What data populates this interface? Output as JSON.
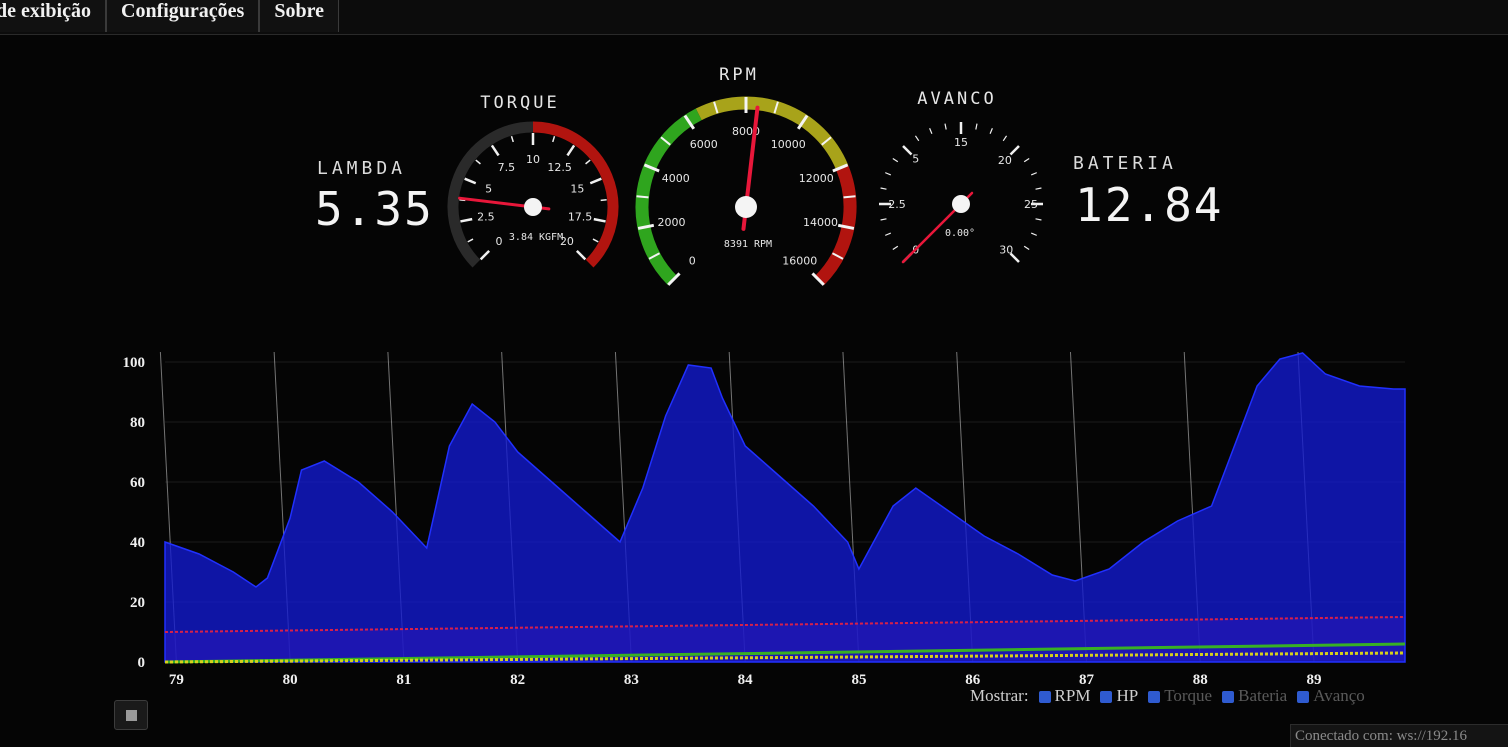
{
  "tabs": [
    {
      "label": "de exibição"
    },
    {
      "label": "Configurações"
    },
    {
      "label": "Sobre"
    }
  ],
  "lambda": {
    "label": "LAMBDA",
    "value": "5.35"
  },
  "bateria": {
    "label": "BATERIA",
    "value": "12.84"
  },
  "torque_gauge": {
    "title": "TORQUE",
    "ticks": [
      "0",
      "2.5",
      "5",
      "7.5",
      "10",
      "12.5",
      "15",
      "17.5",
      "20"
    ],
    "readout": "3.84 KGFM",
    "value": 3.84,
    "min": 0,
    "max": 20
  },
  "rpm_gauge": {
    "title": "RPM",
    "ticks": [
      "0",
      "2000",
      "4000",
      "6000",
      "8000",
      "10000",
      "12000",
      "14000",
      "16000"
    ],
    "readout": "8391 RPM",
    "value": 8391,
    "min": 0,
    "max": 16000
  },
  "avanco_gauge": {
    "title": "AVANCO",
    "ticks": [
      "0",
      "2.5",
      "5",
      "10",
      "15",
      "20",
      "25",
      "30"
    ],
    "readout": "0.00°",
    "value": 0,
    "min": 0,
    "max": 30
  },
  "colors": {
    "gauge_green": "#2fa51e",
    "gauge_yellow": "#a8a31a",
    "gauge_red": "#b1140f",
    "needle": "#e8173a",
    "series_rpm": "#1a1fd6",
    "series_hp": "#d8204a",
    "series_torque": "#d6d11a",
    "series_bateria": "#38b025"
  },
  "chart_data": {
    "type": "area",
    "x_ticks": [
      "79",
      "80",
      "81",
      "82",
      "83",
      "84",
      "85",
      "86",
      "87",
      "88",
      "89"
    ],
    "y_ticks": [
      "0",
      "20",
      "40",
      "60",
      "80",
      "100"
    ],
    "ylim": [
      0,
      110
    ],
    "xlim": [
      78.9,
      89.8
    ],
    "grid": true,
    "series": [
      {
        "name": "RPM",
        "x": [
          78.9,
          79.2,
          79.5,
          79.7,
          79.8,
          80.0,
          80.1,
          80.3,
          80.6,
          80.9,
          81.1,
          81.2,
          81.4,
          81.6,
          81.8,
          82.0,
          82.3,
          82.6,
          82.9,
          83.1,
          83.3,
          83.5,
          83.7,
          83.8,
          84.0,
          84.3,
          84.6,
          84.9,
          85.0,
          85.3,
          85.5,
          85.8,
          86.1,
          86.4,
          86.7,
          86.9,
          87.2,
          87.5,
          87.8,
          88.1,
          88.3,
          88.5,
          88.7,
          88.9,
          89.1,
          89.4,
          89.7,
          89.8
        ],
        "values": [
          40,
          36,
          30,
          25,
          28,
          48,
          64,
          67,
          60,
          50,
          42,
          38,
          72,
          86,
          80,
          70,
          60,
          50,
          40,
          58,
          82,
          99,
          98,
          88,
          72,
          62,
          52,
          40,
          31,
          52,
          58,
          50,
          42,
          36,
          29,
          27,
          31,
          40,
          47,
          52,
          72,
          92,
          101,
          103,
          96,
          92,
          91,
          91
        ]
      },
      {
        "name": "HP",
        "x": [
          78.9,
          89.8
        ],
        "values": [
          10,
          15
        ]
      },
      {
        "name": "Torque",
        "x": [
          78.9,
          89.8
        ],
        "values": [
          0,
          3
        ]
      },
      {
        "name": "Bateria",
        "x": [
          78.9,
          89.8
        ],
        "values": [
          0,
          6
        ]
      }
    ]
  },
  "legend": {
    "prefix": "Mostrar:",
    "items": [
      "RPM",
      "HP",
      "Torque",
      "Bateria",
      "Avanço"
    ]
  },
  "status": {
    "text": "Conectado com: ws://192.16"
  }
}
